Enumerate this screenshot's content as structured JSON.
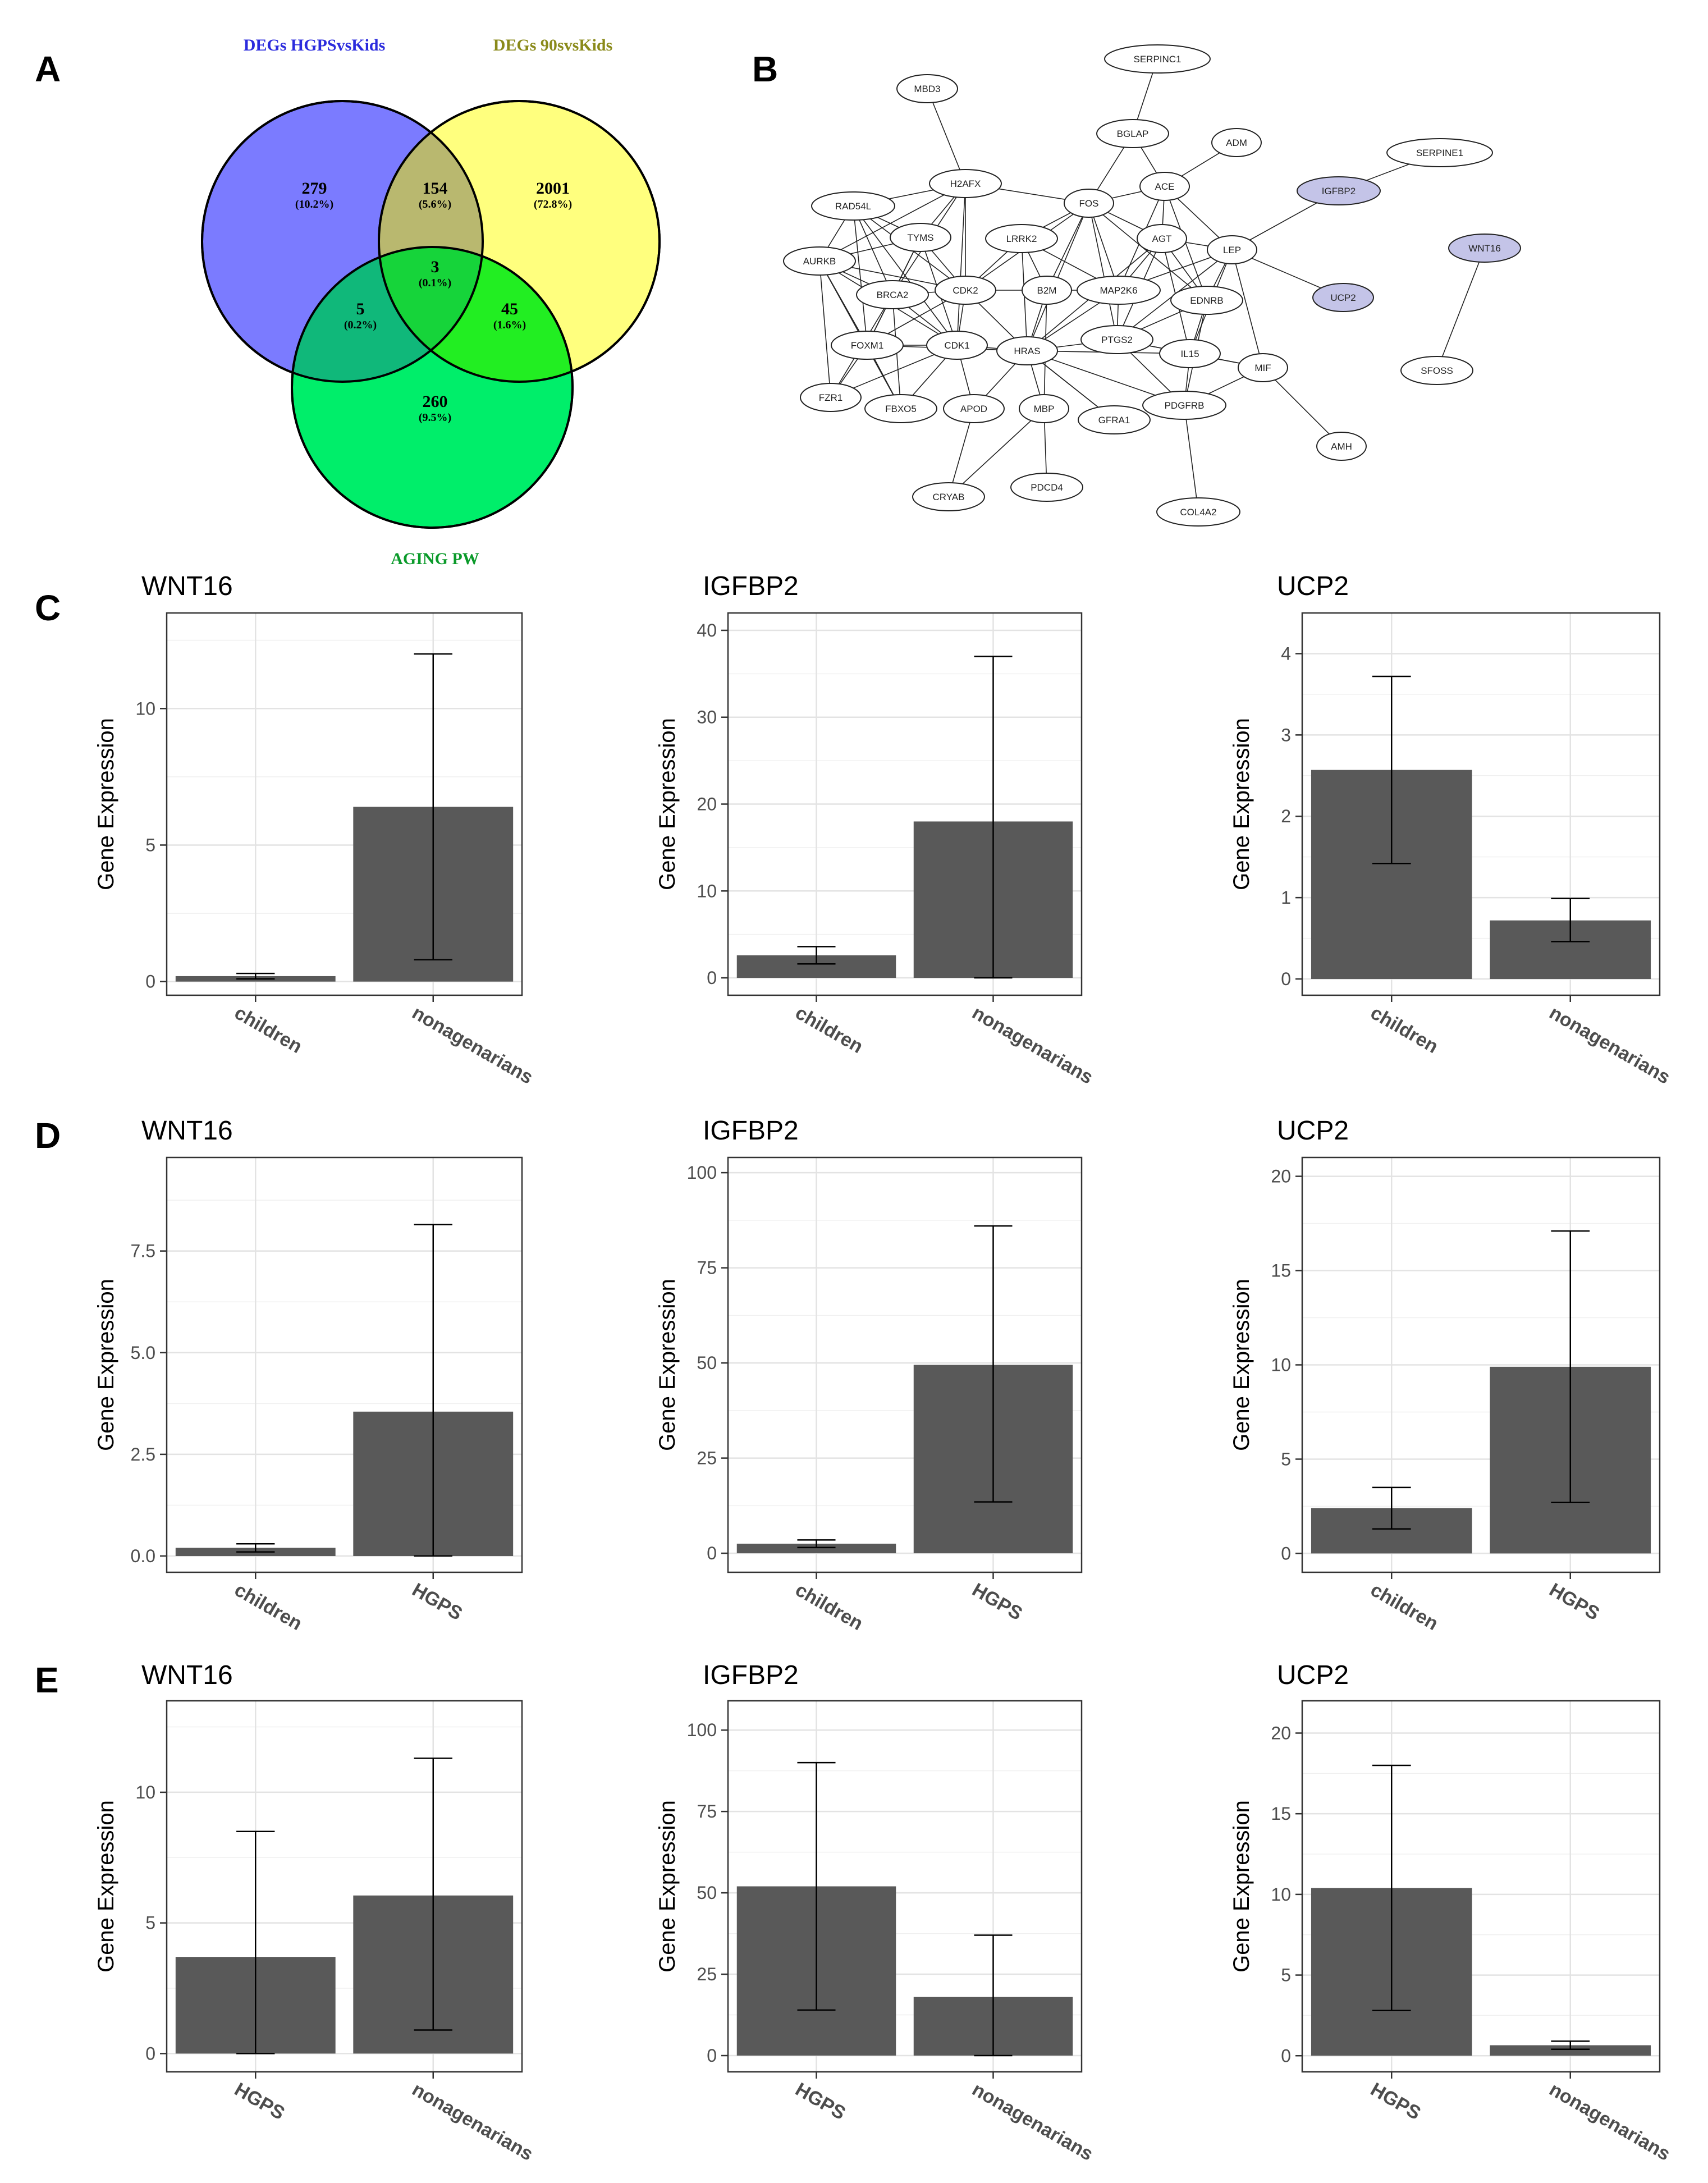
{
  "panel_letters": [
    "A",
    "B",
    "C",
    "D",
    "E"
  ],
  "venn": {
    "sets": [
      {
        "label": "DEGs HGPSvsKids",
        "color": "#7b7bff",
        "label_color": "#2b2bdd"
      },
      {
        "label": "DEGs 90svsKids",
        "color": "#ffff7a",
        "label_color": "#8a8a1a"
      },
      {
        "label": "AGING PW",
        "color": "#00ee6a",
        "label_color": "#0a9a2a"
      }
    ],
    "regions": [
      {
        "count": "279",
        "pct": "(10.2%)"
      },
      {
        "count": "154",
        "pct": "(5.6%)"
      },
      {
        "count": "2001",
        "pct": "(72.8%)"
      },
      {
        "count": "3",
        "pct": "(0.1%)"
      },
      {
        "count": "5",
        "pct": "(0.2%)"
      },
      {
        "count": "45",
        "pct": "(1.6%)"
      },
      {
        "count": "260",
        "pct": "(9.5%)"
      }
    ]
  },
  "network": {
    "nodes": [
      "SERPINC1",
      "MBD3",
      "BGLAP",
      "ADM",
      "SERPINE1",
      "H2AFX",
      "ACE",
      "IGFBP2",
      "FOS",
      "RAD54L",
      "TYMS",
      "LRRK2",
      "AGT",
      "LEP",
      "WNT16",
      "AURKB",
      "CDK2",
      "B2M",
      "MAP2K6",
      "EDNRB",
      "UCP2",
      "BRCA2",
      "FOXM1",
      "CDK1",
      "HRAS",
      "PTGS2",
      "IL15",
      "MIF",
      "FZR1",
      "FBXO5",
      "APOD",
      "MBP",
      "GFRA1",
      "PDGFRB",
      "SFOSS",
      "AMH",
      "CRYAB",
      "PDCD4",
      "COL4A2"
    ],
    "highlighted": [
      "IGFBP2",
      "UCP2",
      "WNT16"
    ],
    "highlight_color": "#c4c4e8"
  },
  "y_axis_label": "Gene Expression",
  "chart_data": [
    {
      "type": "bar",
      "panel": "C",
      "title": "WNT16",
      "categories": [
        "children",
        "nonagenarians"
      ],
      "values": [
        0.2,
        6.4
      ],
      "errors": [
        [
          0.1,
          0.3
        ],
        [
          0.8,
          12.0
        ]
      ],
      "ylim": [
        -0.5,
        13.5
      ],
      "yticks": [
        0,
        5,
        10
      ],
      "ylabel": "Gene Expression",
      "grid": true
    },
    {
      "type": "bar",
      "panel": "C",
      "title": "IGFBP2",
      "categories": [
        "children",
        "nonagenarians"
      ],
      "values": [
        2.6,
        18.0
      ],
      "errors": [
        [
          1.6,
          3.6
        ],
        [
          0.0,
          37.0
        ]
      ],
      "ylim": [
        -2,
        42
      ],
      "yticks": [
        0,
        10,
        20,
        30,
        40
      ],
      "ylabel": "Gene Expression",
      "grid": true
    },
    {
      "type": "bar",
      "panel": "C",
      "title": "UCP2",
      "categories": [
        "children",
        "nonagenarians"
      ],
      "values": [
        2.57,
        0.72
      ],
      "errors": [
        [
          1.42,
          3.72
        ],
        [
          0.46,
          0.99
        ]
      ],
      "ylim": [
        -0.2,
        4.5
      ],
      "yticks": [
        0,
        1,
        2,
        3,
        4
      ],
      "ylabel": "Gene Expression",
      "grid": true
    },
    {
      "type": "bar",
      "panel": "D",
      "title": "WNT16",
      "categories": [
        "children",
        "HGPS"
      ],
      "values": [
        0.2,
        3.55
      ],
      "errors": [
        [
          0.1,
          0.3
        ],
        [
          0.0,
          8.15
        ]
      ],
      "ylim": [
        -0.4,
        9.8
      ],
      "yticks": [
        0.0,
        2.5,
        5.0,
        7.5
      ],
      "ytick_labels": [
        "0.0",
        "2.5",
        "5.0",
        "7.5"
      ],
      "ylabel": "Gene Expression",
      "grid": true
    },
    {
      "type": "bar",
      "panel": "D",
      "title": "IGFBP2",
      "categories": [
        "children",
        "HGPS"
      ],
      "values": [
        2.5,
        49.5
      ],
      "errors": [
        [
          1.5,
          3.5
        ],
        [
          13.5,
          86.0
        ]
      ],
      "ylim": [
        -5,
        104
      ],
      "yticks": [
        0,
        25,
        50,
        75,
        100
      ],
      "ylabel": "Gene Expression",
      "grid": true
    },
    {
      "type": "bar",
      "panel": "D",
      "title": "UCP2",
      "categories": [
        "children",
        "HGPS"
      ],
      "values": [
        2.4,
        9.9
      ],
      "errors": [
        [
          1.3,
          3.5
        ],
        [
          2.7,
          17.1
        ]
      ],
      "ylim": [
        -1,
        21
      ],
      "yticks": [
        0,
        5,
        10,
        15,
        20
      ],
      "ylabel": "Gene Expression",
      "grid": true
    },
    {
      "type": "bar",
      "panel": "E",
      "title": "WNT16",
      "categories": [
        "HGPS",
        "nonagenarians"
      ],
      "values": [
        3.7,
        6.05
      ],
      "errors": [
        [
          0.0,
          8.5
        ],
        [
          0.9,
          11.3
        ]
      ],
      "ylim": [
        -0.7,
        13.5
      ],
      "yticks": [
        0,
        5,
        10
      ],
      "ylabel": "Gene Expression",
      "grid": true
    },
    {
      "type": "bar",
      "panel": "E",
      "title": "IGFBP2",
      "categories": [
        "HGPS",
        "nonagenarians"
      ],
      "values": [
        52.0,
        18.0
      ],
      "errors": [
        [
          14.0,
          90.0
        ],
        [
          0.0,
          37.0
        ]
      ],
      "ylim": [
        -5,
        109
      ],
      "yticks": [
        0,
        25,
        50,
        75,
        100
      ],
      "ylabel": "Gene Expression",
      "grid": true
    },
    {
      "type": "bar",
      "panel": "E",
      "title": "UCP2",
      "categories": [
        "HGPS",
        "nonagenarians"
      ],
      "values": [
        10.4,
        0.65
      ],
      "errors": [
        [
          2.8,
          18.0
        ],
        [
          0.4,
          0.9
        ]
      ],
      "ylim": [
        -1,
        22
      ],
      "yticks": [
        0,
        5,
        10,
        15,
        20
      ],
      "ylabel": "Gene Expression",
      "grid": true
    }
  ]
}
